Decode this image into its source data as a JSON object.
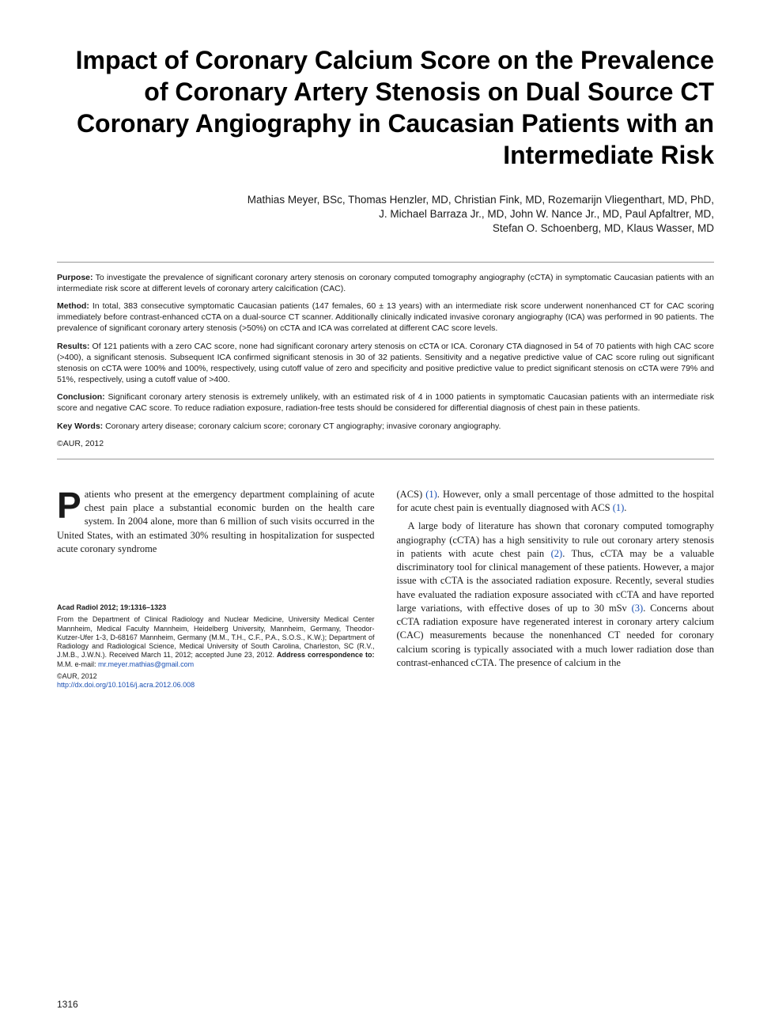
{
  "title": "Impact of Coronary Calcium Score on the Prevalence of Coronary Artery Stenosis on Dual Source CT Coronary Angiography in Caucasian Patients with an Intermediate Risk",
  "authors_line1": "Mathias Meyer, BSc, Thomas Henzler, MD, Christian Fink, MD, Rozemarijn Vliegenthart, MD, PhD,",
  "authors_line2": "J. Michael Barraza Jr., MD, John W. Nance Jr., MD, Paul Apfaltrer, MD,",
  "authors_line3": "Stefan O. Schoenberg, MD, Klaus Wasser, MD",
  "abstract": {
    "purpose_label": "Purpose:",
    "purpose": " To investigate the prevalence of significant coronary artery stenosis on coronary computed tomography angiography (cCTA) in symptomatic Caucasian patients with an intermediate risk score at different levels of coronary artery calcification (CAC).",
    "method_label": "Method:",
    "method": " In total, 383 consecutive symptomatic Caucasian patients (147 females, 60 ± 13 years) with an intermediate risk score underwent nonenhanced CT for CAC scoring immediately before contrast-enhanced cCTA on a dual-source CT scanner. Additionally clinically indicated invasive coronary angiography (ICA) was performed in 90 patients. The prevalence of significant coronary artery stenosis (>50%) on cCTA and ICA was correlated at different CAC score levels.",
    "results_label": "Results:",
    "results": " Of 121 patients with a zero CAC score, none had significant coronary artery stenosis on cCTA or ICA. Coronary CTA diagnosed in 54 of 70 patients with high CAC score (>400), a significant stenosis. Subsequent ICA confirmed significant stenosis in 30 of 32 patients. Sensitivity and a negative predictive value of CAC score ruling out significant stenosis on cCTA were 100% and 100%, respectively, using cutoff value of zero and specificity and positive predictive value to predict significant stenosis on cCTA were 79% and 51%, respectively, using a cutoff value of >400.",
    "conclusion_label": "Conclusion:",
    "conclusion": " Significant coronary artery stenosis is extremely unlikely, with an estimated risk of 4 in 1000 patients in symptomatic Caucasian patients with an intermediate risk score and negative CAC score. To reduce radiation exposure, radiation-free tests should be considered for differential diagnosis of chest pain in these patients.",
    "keywords_label": "Key Words:",
    "keywords": " Coronary artery disease; coronary calcium score; coronary CT angiography; invasive coronary angiography.",
    "copyright": "©AUR, 2012"
  },
  "body": {
    "col1_p1_cap": "P",
    "col1_p1": "atients who present at the emergency department complaining of acute chest pain place a substantial economic burden on the health care system. In 2004 alone, more than 6 million of such visits occurred in the United States, with an estimated 30% resulting in hospitalization for suspected acute coronary syndrome",
    "col2_p1_a": "(ACS) ",
    "col2_p1_ref1": "(1)",
    "col2_p1_b": ". However, only a small percentage of those admitted to the hospital for acute chest pain is eventually diagnosed with ACS ",
    "col2_p1_ref2": "(1)",
    "col2_p1_c": ".",
    "col2_p2_a": "A large body of literature has shown that coronary computed tomography angiography (cCTA) has a high sensitivity to rule out coronary artery stenosis in patients with acute chest pain ",
    "col2_p2_ref1": "(2)",
    "col2_p2_b": ". Thus, cCTA may be a valuable discriminatory tool for clinical management of these patients. However, a major issue with cCTA is the associated radiation exposure. Recently, several studies have evaluated the radiation exposure associated with cCTA and have reported large variations, with effective doses of up to 30 mSv ",
    "col2_p2_ref2": "(3)",
    "col2_p2_c": ". Concerns about cCTA radiation exposure have regenerated interest in coronary artery calcium (CAC) measurements because the nonenhanced CT needed for coronary calcium scoring is typically associated with a much lower radiation dose than contrast-enhanced cCTA. The presence of calcium in the"
  },
  "footer": {
    "citation": "Acad Radiol 2012; 19:1316–1323",
    "affil_a": "From the Department of Clinical Radiology and Nuclear Medicine, University Medical Center Mannheim, Medical Faculty Mannheim, Heidelberg University, Mannheim, Germany, Theodor-Kutzer-Ufer 1-3, D-68167 Mannheim, Germany (M.M., T.H., C.F., P.A., S.O.S., K.W.); Department of Radiology and Radiological Science, Medical University of South Carolina, Charleston, SC (R.V., J.M.B., J.W.N.). Received March 11, 2012; accepted June 23, 2012. ",
    "affil_bold": "Address correspondence to:",
    "affil_b": " M.M. e-mail: ",
    "email": "mr.meyer.mathias@gmail.com",
    "copyright": "©AUR, 2012",
    "doi": "http://dx.doi.org/10.1016/j.acra.2012.06.008"
  },
  "page_number": "1316"
}
